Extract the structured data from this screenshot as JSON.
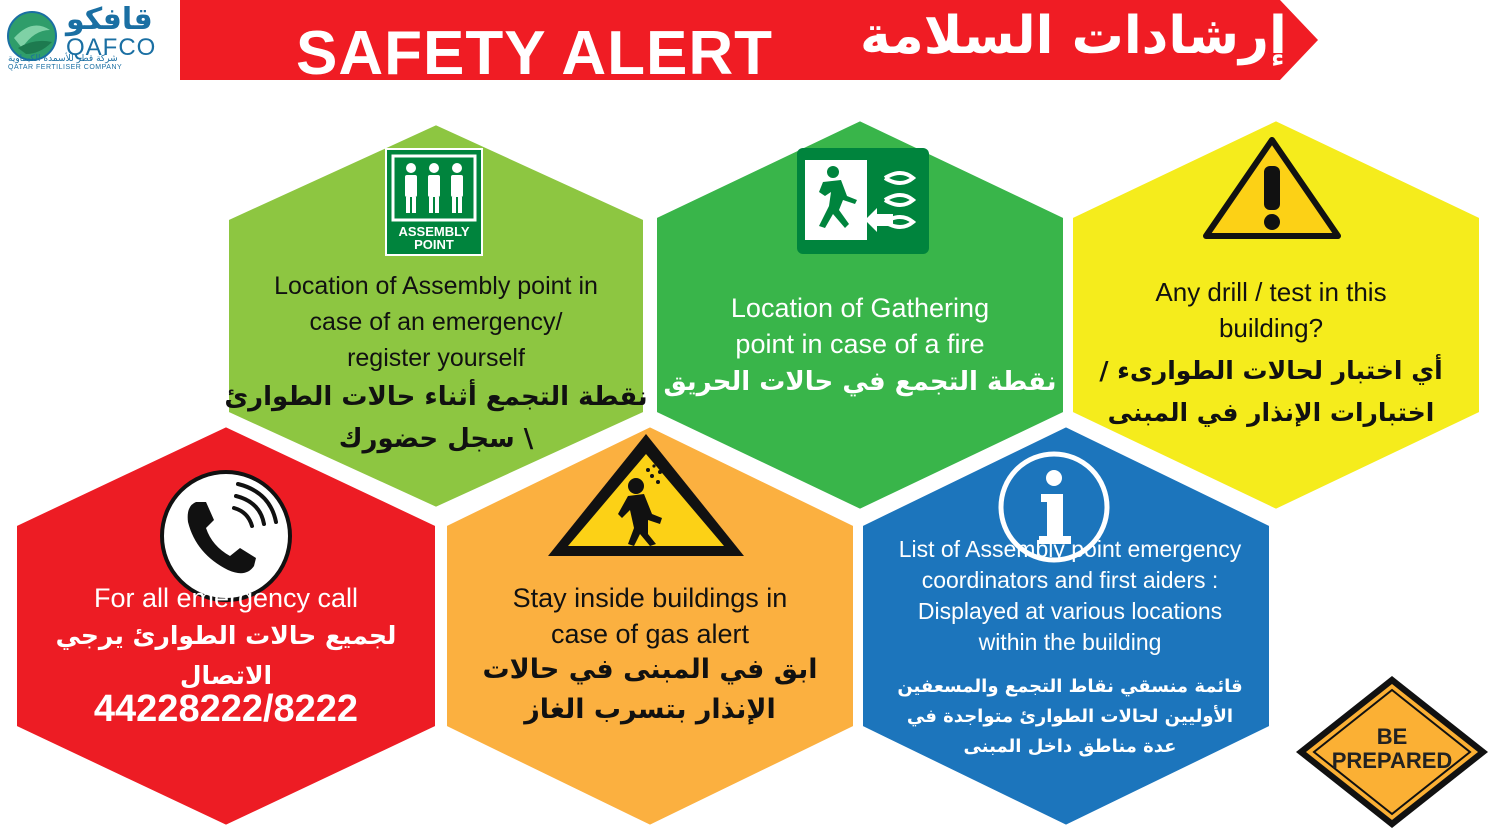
{
  "header": {
    "logo_ar": "قافكو",
    "logo_en": "QAFCO",
    "logo_sub_ar": "شركة قطر للأسمدة الكيماوية",
    "logo_sub_en": "QATAR FERTILISER COMPANY",
    "title_en": "SAFETY ALERT",
    "title_ar": "إرشادات السلامة"
  },
  "panels": {
    "assembly": {
      "icon_label_1": "ASSEMBLY",
      "icon_label_2": "POINT",
      "en_1": "Location of Assembly point in",
      "en_2": "case of an emergency/",
      "en_3": "register yourself",
      "ar_1": "نقطة التجمع أثناء حالات الطوارئ",
      "ar_2": "\\ سجل حضورك"
    },
    "gathering": {
      "en_1": "Location of Gathering",
      "en_2": "point in case of a fire",
      "ar_1": "نقطة التجمع في حالات الحريق"
    },
    "drill": {
      "en_1": "Any drill / test in this",
      "en_2": "building?",
      "ar_1": "أي اختبار لحالات الطوارىء /",
      "ar_2": "اختبارات الإنذار في المبنى"
    },
    "emergency_call": {
      "en_1": "For all emergency call",
      "ar_1": "لجميع حالات الطوارئ يرجي الاتصال",
      "number": "44228222/8222"
    },
    "gas_alert": {
      "en_1": "Stay inside buildings in",
      "en_2": "case of gas alert",
      "ar_1": "ابق في المبنى في حالات",
      "ar_2": "الإنذار بتسرب الغاز"
    },
    "coordinators": {
      "en_1": "List of Assembly point emergency",
      "en_2": "coordinators and first aiders :",
      "en_3": "Displayed at various locations",
      "en_4": "within the building",
      "ar_1": "قائمة منسقي نقاط التجمع والمسعفين",
      "ar_2": "الأوليين لحالات الطوارئ متواجدة في",
      "ar_3": "عدة مناطق داخل المبنى"
    }
  },
  "be_prepared": {
    "line_1": "BE",
    "line_2": "PREPARED"
  },
  "colors": {
    "banner_red": "#f01c24",
    "green_light": "#8dc641",
    "green": "#39b54a",
    "yellow": "#f5ec1c",
    "red": "#ed1c24",
    "orange": "#fbb040",
    "blue": "#1c75bc",
    "sign_green": "#00843d",
    "sign_yellow": "#fcd116"
  }
}
